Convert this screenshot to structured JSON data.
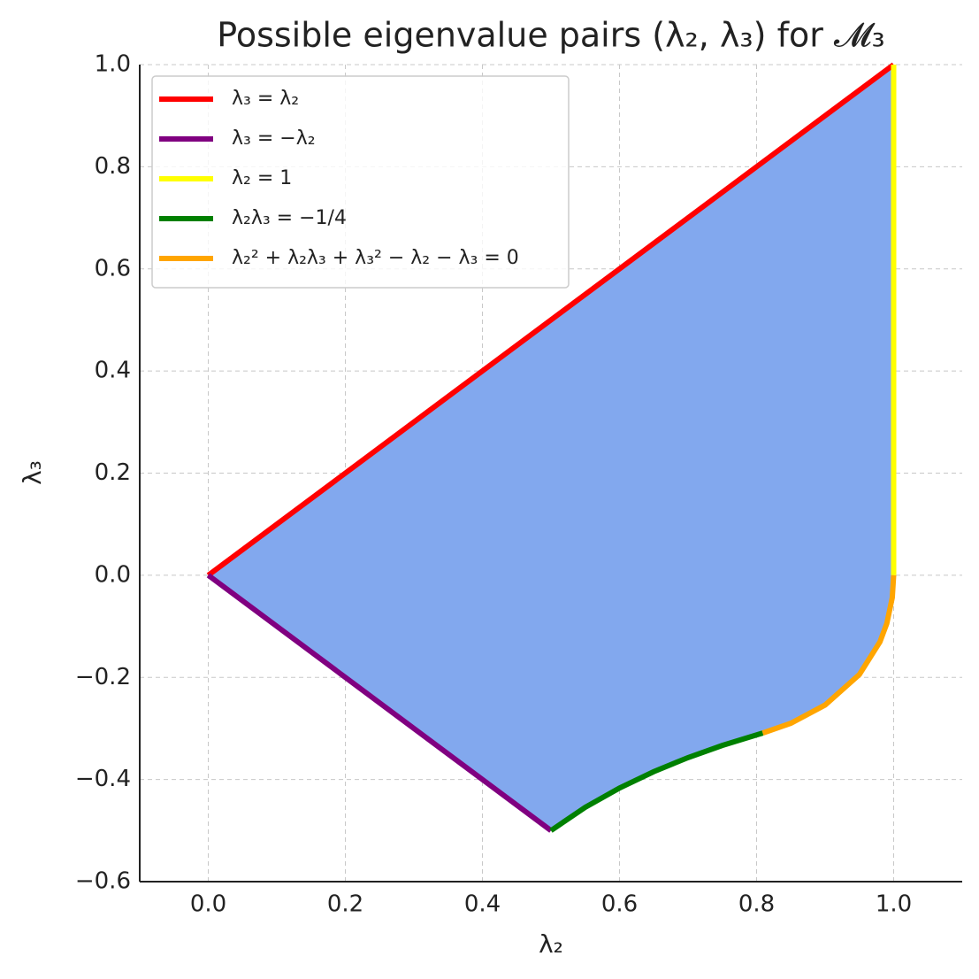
{
  "chart_data": {
    "type": "line",
    "title": "Possible eigenvalue pairs (λ₂, λ₃) for 𝓜₃",
    "x_label": "λ₂",
    "y_label": "λ₃",
    "xlim": [
      -0.1,
      1.1
    ],
    "ylim": [
      -0.6,
      1.0
    ],
    "xticks": [
      {
        "value": 0.0,
        "label": "0.0"
      },
      0.2,
      0.4,
      0.6,
      0.8,
      {
        "value": 1.0,
        "label": "1.0"
      }
    ],
    "yticks": [
      {
        "value": -0.6,
        "label": "−0.6"
      },
      {
        "value": -0.4,
        "label": "−0.4"
      },
      {
        "value": -0.2,
        "label": "−0.2"
      },
      {
        "value": 0.0,
        "label": "0.0"
      },
      0.2,
      0.4,
      0.6,
      0.8,
      {
        "value": 1.0,
        "label": "1.0"
      }
    ],
    "grid": true,
    "legend_position": "upper-left",
    "fill_color": "#82a8ee",
    "series": [
      {
        "name": "λ₃ = λ₂",
        "color": "#ff0000",
        "x": [
          0,
          1
        ],
        "values": [
          0,
          1
        ]
      },
      {
        "name": "λ₃ = −λ₂",
        "color": "#800080",
        "x": [
          0,
          0.5
        ],
        "values": [
          0,
          -0.5
        ]
      },
      {
        "name": "λ₂ = 1",
        "color": "#ffff00",
        "x": [
          1,
          1
        ],
        "values": [
          0,
          1
        ]
      },
      {
        "name": "λ₂λ₃ = −1/4",
        "color": "#008000",
        "x": [
          0.5,
          0.55,
          0.6,
          0.65,
          0.7,
          0.75,
          0.809
        ],
        "values": [
          -0.5,
          -0.4545,
          -0.4167,
          -0.3846,
          -0.3571,
          -0.3333,
          -0.309
        ]
      },
      {
        "name": "λ₂² + λ₂λ₃ + λ₃² − λ₂ − λ₃ = 0",
        "color": "#ffa500",
        "x": [
          0.809,
          0.85,
          0.9,
          0.95,
          0.98,
          0.99,
          0.998,
          1.0
        ],
        "values": [
          -0.309,
          -0.2899,
          -0.2541,
          -0.1944,
          -0.1304,
          -0.0946,
          -0.0437,
          0
        ]
      }
    ]
  }
}
